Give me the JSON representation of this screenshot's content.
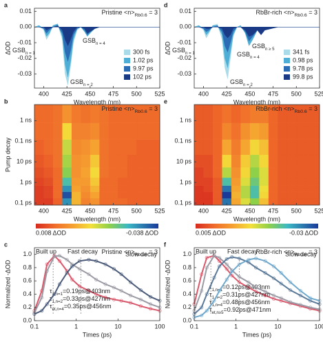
{
  "chart_data": [
    {
      "panel": "a",
      "type": "area",
      "title": {
        "text": "Pristine <n>",
        "sub": "Rb0.6",
        "tail": " = 3"
      },
      "xlabel": "Wavelength (nm)",
      "ylabel": "ΔOD",
      "xlim": [
        390,
        525
      ],
      "ylim": [
        -0.039,
        0.012
      ],
      "xticks": [
        400,
        425,
        450,
        475,
        500,
        525
      ],
      "yticks": [
        0.01,
        {
          "value": 0,
          "label": "0.00"
        },
        -0.01,
        -0.02,
        -0.03
      ],
      "x": [
        390,
        395,
        400,
        403,
        406,
        410,
        415,
        420,
        423,
        426,
        429,
        432,
        436,
        440,
        444,
        447,
        450,
        455,
        460,
        470,
        490,
        525
      ],
      "series": [
        {
          "name": "300 fs",
          "color": "#a9dbe8",
          "values": [
            0,
            0.001,
            -0.002,
            -0.008,
            -0.005,
            0.001,
            0.002,
            -0.008,
            -0.03,
            -0.037,
            -0.025,
            -0.01,
            -0.002,
            0,
            -0.003,
            -0.005,
            -0.003,
            0,
            0,
            0,
            0,
            0
          ]
        },
        {
          "name": "1.02 ps",
          "color": "#4eaed6",
          "values": [
            0,
            0.001,
            -0.001,
            -0.006,
            -0.004,
            0.001,
            0.002,
            -0.006,
            -0.024,
            -0.032,
            -0.022,
            -0.008,
            -0.001,
            0,
            -0.003,
            -0.006,
            -0.004,
            -0.001,
            0,
            0,
            0,
            0
          ]
        },
        {
          "name": "9.97 ps",
          "color": "#2b6cb4",
          "values": [
            0,
            0,
            -0.001,
            -0.004,
            -0.002,
            0,
            0.001,
            -0.004,
            -0.016,
            -0.022,
            -0.015,
            -0.005,
            -0.001,
            0,
            -0.002,
            -0.005,
            -0.003,
            -0.001,
            0,
            0,
            0,
            0
          ]
        },
        {
          "name": "102 ps",
          "color": "#1b3a86",
          "values": [
            0,
            0,
            0,
            -0.002,
            -0.001,
            0,
            0.001,
            -0.002,
            -0.008,
            -0.012,
            -0.008,
            -0.003,
            0,
            0,
            -0.001,
            -0.004,
            -0.003,
            -0.001,
            0,
            0,
            0,
            0
          ]
        }
      ],
      "annotations": [
        {
          "text": "GSB",
          "sub": "n = 1"
        },
        {
          "text": "GSB",
          "sub": "n = 2"
        },
        {
          "text": "GSB",
          "sub": "n = 4"
        }
      ]
    },
    {
      "panel": "b",
      "type": "heatmap",
      "title": {
        "text": "Pristine <n>",
        "sub": "Rb0.6",
        "tail": " = 3"
      },
      "xlabel": "Wavelength (nm)",
      "ylabel": "Pump decay",
      "yscale": "log",
      "xlim": [
        390,
        525
      ],
      "ylim": [
        0.08,
        6000
      ],
      "xticks": [
        400,
        425,
        450,
        475,
        500,
        525
      ],
      "yticks": [
        {
          "value": 0.1,
          "label": "0.1 ps"
        },
        {
          "value": 1,
          "label": "1 ps"
        },
        {
          "value": 10,
          "label": "10 ps"
        },
        {
          "value": 100,
          "label": "0.1 ns"
        },
        {
          "value": 1000,
          "label": "1 ns"
        }
      ],
      "clim": [
        -0.038,
        0.008
      ],
      "clim_labels": [
        "0.008 ΔOD",
        "-0.038 ΔOD"
      ],
      "x": [
        395,
        405,
        415,
        425,
        435,
        445,
        455,
        465,
        475,
        485,
        495,
        505,
        515
      ],
      "y": [
        0.12,
        0.25,
        0.5,
        1,
        3,
        10,
        50,
        300,
        2000
      ],
      "z": [
        [
          0.006,
          0.006,
          0.002,
          -0.03,
          -0.008,
          -0.002,
          -0.004,
          0.001,
          0.001,
          0.001,
          0.002,
          0.002,
          0.002
        ],
        [
          0.006,
          0.005,
          0.001,
          -0.036,
          -0.008,
          -0.003,
          -0.006,
          0.001,
          0.001,
          0.002,
          0.002,
          0.002,
          0.002
        ],
        [
          0.006,
          0.005,
          0.001,
          -0.03,
          -0.006,
          -0.004,
          -0.008,
          0.001,
          0.001,
          0.002,
          0.002,
          0.002,
          0.002
        ],
        [
          0.005,
          0.004,
          0.001,
          -0.025,
          -0.005,
          -0.005,
          -0.01,
          0.001,
          0.001,
          0.002,
          0.002,
          0.002,
          0.002
        ],
        [
          0.004,
          0.003,
          0.001,
          -0.02,
          -0.004,
          -0.006,
          -0.012,
          0,
          0.001,
          0.001,
          0.002,
          0.002,
          0.002
        ],
        [
          0.003,
          0.002,
          0,
          -0.018,
          -0.004,
          -0.005,
          -0.01,
          0,
          0.001,
          0.001,
          0.002,
          0.002,
          0.002
        ],
        [
          0.002,
          0.001,
          0,
          -0.016,
          -0.003,
          -0.004,
          -0.006,
          0,
          0.001,
          0.001,
          0.001,
          0.002,
          0.002
        ],
        [
          0.001,
          0.001,
          0,
          -0.012,
          -0.002,
          -0.002,
          -0.003,
          0,
          0.001,
          0.001,
          0.001,
          0.001,
          0.001
        ],
        [
          0.001,
          0.001,
          0,
          -0.004,
          -0.001,
          0,
          -0.001,
          0,
          0.001,
          0.001,
          0.001,
          0.001,
          0.001
        ]
      ]
    },
    {
      "panel": "c",
      "type": "kinetics",
      "title": {
        "text": "Pristine <n>",
        "sub": "Rb0.6",
        "tail": " = 3"
      },
      "xlabel": "Times (ps)",
      "ylabel": "Normalized -ΔOD",
      "xscale": "log",
      "xlim": [
        0.1,
        100
      ],
      "ylim": [
        0,
        1.1
      ],
      "xticks": [
        0.1,
        1,
        10,
        100
      ],
      "yticks": [
        {
          "value": 0,
          "label": "0.0"
        },
        0.2,
        0.4,
        0.6,
        0.8,
        {
          "value": 1,
          "label": "1.0"
        }
      ],
      "annotations": [
        "Built up",
        "Fast decay",
        "Slow decay"
      ],
      "vlines": [
        0.28,
        1.3
      ],
      "x": [
        0.1,
        0.15,
        0.2,
        0.3,
        0.4,
        0.6,
        0.8,
        1.2,
        2,
        3,
        5,
        8,
        12,
        20,
        35,
        60,
        100
      ],
      "series": [
        {
          "label": {
            "text": "τ",
            "sub": "1,n=1",
            "tail": "=0.19ps@403nm"
          },
          "color": "#d9576a",
          "values": [
            0.15,
            0.45,
            0.85,
            0.98,
            0.9,
            0.75,
            0.62,
            0.52,
            0.45,
            0.4,
            0.35,
            0.32,
            0.3,
            0.27,
            0.22,
            0.18,
            0.15
          ]
        },
        {
          "label": {
            "text": "τ",
            "sub": "1,n=2",
            "tail": "=0.33ps@427nm"
          },
          "color": "#9a9aa4",
          "values": [
            0.12,
            0.35,
            0.75,
            0.97,
            0.98,
            0.92,
            0.85,
            0.78,
            0.7,
            0.62,
            0.55,
            0.5,
            0.45,
            0.38,
            0.32,
            0.25,
            0.2
          ]
        },
        {
          "label": {
            "text": "τ",
            "sub": "et,n=4",
            "tail": "=0.35ps@456nm"
          },
          "color": "#4a5a78",
          "values": [
            0.1,
            0.15,
            0.25,
            0.4,
            0.55,
            0.72,
            0.82,
            0.9,
            0.92,
            0.9,
            0.85,
            0.78,
            0.7,
            0.58,
            0.46,
            0.36,
            0.3
          ]
        }
      ]
    },
    {
      "panel": "d",
      "type": "area",
      "title": {
        "text": "RbBr-rich <n>",
        "sub": "Rb0.6",
        "tail": " = 3"
      },
      "xlabel": "Wavelength (nm)",
      "ylabel": "ΔOD",
      "xlim": [
        390,
        525
      ],
      "ylim": [
        -0.039,
        0.012
      ],
      "xticks": [
        400,
        425,
        450,
        475,
        500,
        525
      ],
      "yticks": [
        0.01,
        {
          "value": 0,
          "label": "0.00"
        },
        -0.01,
        -0.02,
        -0.03
      ],
      "x": [
        390,
        395,
        400,
        403,
        406,
        410,
        415,
        420,
        423,
        426,
        429,
        432,
        436,
        440,
        445,
        449,
        453,
        458,
        462,
        466,
        480,
        525
      ],
      "series": [
        {
          "name": "341 fs",
          "color": "#a9dbe8",
          "values": [
            0,
            0.001,
            -0.002,
            -0.007,
            -0.004,
            0.001,
            0.002,
            -0.008,
            -0.026,
            -0.033,
            -0.02,
            -0.006,
            0,
            0.001,
            -0.004,
            -0.011,
            -0.007,
            -0.002,
            -0.004,
            -0.001,
            0,
            0
          ]
        },
        {
          "name": "0.98 ps",
          "color": "#4eaed6",
          "values": [
            0,
            0.001,
            -0.001,
            -0.005,
            -0.003,
            0.001,
            0.001,
            -0.005,
            -0.02,
            -0.026,
            -0.016,
            -0.005,
            0,
            0.001,
            -0.004,
            -0.012,
            -0.008,
            -0.002,
            -0.004,
            -0.001,
            0,
            0
          ]
        },
        {
          "name": "9.78 ps",
          "color": "#2b6cb4",
          "values": [
            0,
            0,
            -0.001,
            -0.003,
            -0.002,
            0,
            0.001,
            -0.003,
            -0.012,
            -0.016,
            -0.01,
            -0.003,
            0,
            0,
            -0.003,
            -0.009,
            -0.006,
            -0.002,
            -0.005,
            -0.002,
            0,
            0
          ]
        },
        {
          "name": "99.8 ps",
          "color": "#1b3a86",
          "values": [
            0,
            0,
            0,
            -0.001,
            -0.001,
            0,
            0,
            -0.001,
            -0.005,
            -0.007,
            -0.005,
            -0.001,
            0,
            0,
            -0.002,
            -0.006,
            -0.005,
            -0.002,
            -0.005,
            -0.002,
            0,
            0
          ]
        }
      ],
      "annotations": [
        {
          "text": "GSB",
          "sub": "n = 1"
        },
        {
          "text": "GSB",
          "sub": "n = 2"
        },
        {
          "text": "GSB",
          "sub": "n = 4"
        },
        {
          "text": "GSB",
          "sub": "n ≥ 5"
        }
      ]
    },
    {
      "panel": "e",
      "type": "heatmap",
      "title": {
        "text": "RbBr-rich <n>",
        "sub": "Rb0.6",
        "tail": " = 3"
      },
      "xlabel": "Wavelength (nm)",
      "yscale": "log",
      "xlim": [
        390,
        525
      ],
      "ylim": [
        0.08,
        6000
      ],
      "xticks": [
        400,
        425,
        450,
        475,
        500,
        525
      ],
      "yticks": [
        {
          "value": 0.1,
          "label": "0.1 ps"
        },
        {
          "value": 1,
          "label": "1 ps"
        },
        {
          "value": 10,
          "label": "10 ps"
        },
        {
          "value": 100,
          "label": "0.1 ns"
        },
        {
          "value": 1000,
          "label": "1 ns"
        }
      ],
      "clim": [
        -0.03,
        0.005
      ],
      "clim_labels": [
        "0.005 ΔOD",
        "-0.03 ΔOD"
      ],
      "x": [
        395,
        405,
        415,
        425,
        435,
        445,
        455,
        465,
        475,
        485,
        495,
        505,
        515
      ],
      "y": [
        0.12,
        0.25,
        0.5,
        1,
        3,
        10,
        50,
        300,
        2000
      ],
      "z": [
        [
          0.004,
          0.004,
          0.001,
          -0.026,
          -0.006,
          -0.012,
          -0.016,
          -0.008,
          0,
          0.001,
          0.001,
          0.001,
          0.001
        ],
        [
          0.004,
          0.004,
          0.001,
          -0.03,
          -0.007,
          -0.014,
          -0.02,
          -0.01,
          0,
          0.001,
          0.001,
          0.001,
          0.001
        ],
        [
          0.004,
          0.003,
          0.001,
          -0.026,
          -0.006,
          -0.014,
          -0.02,
          -0.011,
          0,
          0.001,
          0.001,
          0.001,
          0.001
        ],
        [
          0.003,
          0.003,
          0.001,
          -0.02,
          -0.005,
          -0.012,
          -0.018,
          -0.012,
          0,
          0.001,
          0.001,
          0.001,
          0.001
        ],
        [
          0.003,
          0.002,
          0,
          -0.014,
          -0.004,
          -0.01,
          -0.016,
          -0.012,
          0,
          0.001,
          0.001,
          0.001,
          0.001
        ],
        [
          0.002,
          0.002,
          0,
          -0.01,
          -0.003,
          -0.009,
          -0.014,
          -0.01,
          0,
          0.001,
          0.001,
          0.001,
          0.001
        ],
        [
          0.001,
          0.001,
          0,
          -0.006,
          -0.002,
          -0.006,
          -0.01,
          -0.008,
          0,
          0.001,
          0.001,
          0.001,
          0.001
        ],
        [
          0.001,
          0.001,
          0,
          -0.003,
          -0.001,
          -0.004,
          -0.006,
          -0.005,
          0,
          0.001,
          0.001,
          0.001,
          0.001
        ],
        [
          0.001,
          0.001,
          0,
          -0.001,
          0,
          -0.001,
          -0.002,
          -0.002,
          0,
          0.001,
          0.001,
          0.001,
          0.001
        ]
      ]
    },
    {
      "panel": "f",
      "type": "kinetics",
      "title": {
        "text": "RbBr-rich <n>",
        "sub": "Rb0.6",
        "tail": " = 3"
      },
      "xlabel": "Times (ps)",
      "ylabel": "Normalized -ΔOD",
      "xscale": "log",
      "xlim": [
        0.1,
        100
      ],
      "ylim": [
        0,
        1.1
      ],
      "xticks": [
        0.1,
        1,
        10,
        100
      ],
      "yticks": [
        {
          "value": 0,
          "label": "0.0"
        },
        0.2,
        0.4,
        0.6,
        0.8,
        {
          "value": 1,
          "label": "1.0"
        }
      ],
      "annotations": [
        "Built up",
        "Fast decay",
        "Slow decay"
      ],
      "vlines": [
        0.25,
        1.2
      ],
      "x": [
        0.1,
        0.15,
        0.2,
        0.3,
        0.4,
        0.6,
        0.8,
        1.2,
        2,
        3,
        5,
        8,
        12,
        20,
        35,
        60,
        100
      ],
      "series": [
        {
          "label": {
            "text": "τ",
            "sub": "1,n=1",
            "tail": "=0.12ps@403nm"
          },
          "color": "#d9576a",
          "values": [
            0.25,
            0.7,
            0.95,
            0.98,
            0.9,
            0.78,
            0.68,
            0.58,
            0.5,
            0.44,
            0.38,
            0.33,
            0.3,
            0.26,
            0.22,
            0.18,
            0.15
          ]
        },
        {
          "label": {
            "text": "τ",
            "sub": "1,n=2",
            "tail": "=0.31ps@427nm"
          },
          "color": "#9a9aa4",
          "values": [
            0.15,
            0.45,
            0.8,
            0.98,
            0.95,
            0.85,
            0.76,
            0.66,
            0.58,
            0.5,
            0.44,
            0.38,
            0.34,
            0.28,
            0.24,
            0.2,
            0.17
          ]
        },
        {
          "label": {
            "text": "τ",
            "sub": "1,n=4",
            "tail": "=0.48ps@456nm"
          },
          "color": "#5a7898",
          "values": [
            0.1,
            0.2,
            0.4,
            0.65,
            0.82,
            0.93,
            0.96,
            0.94,
            0.88,
            0.8,
            0.72,
            0.64,
            0.56,
            0.46,
            0.38,
            0.3,
            0.25
          ]
        },
        {
          "label": {
            "text": "τ",
            "sub": "et,n≥5",
            "tail": "=0.92ps@471nm"
          },
          "color": "#6fa8cc",
          "values": [
            0.05,
            0.08,
            0.15,
            0.3,
            0.45,
            0.62,
            0.74,
            0.85,
            0.92,
            0.94,
            0.9,
            0.82,
            0.72,
            0.58,
            0.45,
            0.34,
            0.3
          ]
        }
      ]
    }
  ]
}
